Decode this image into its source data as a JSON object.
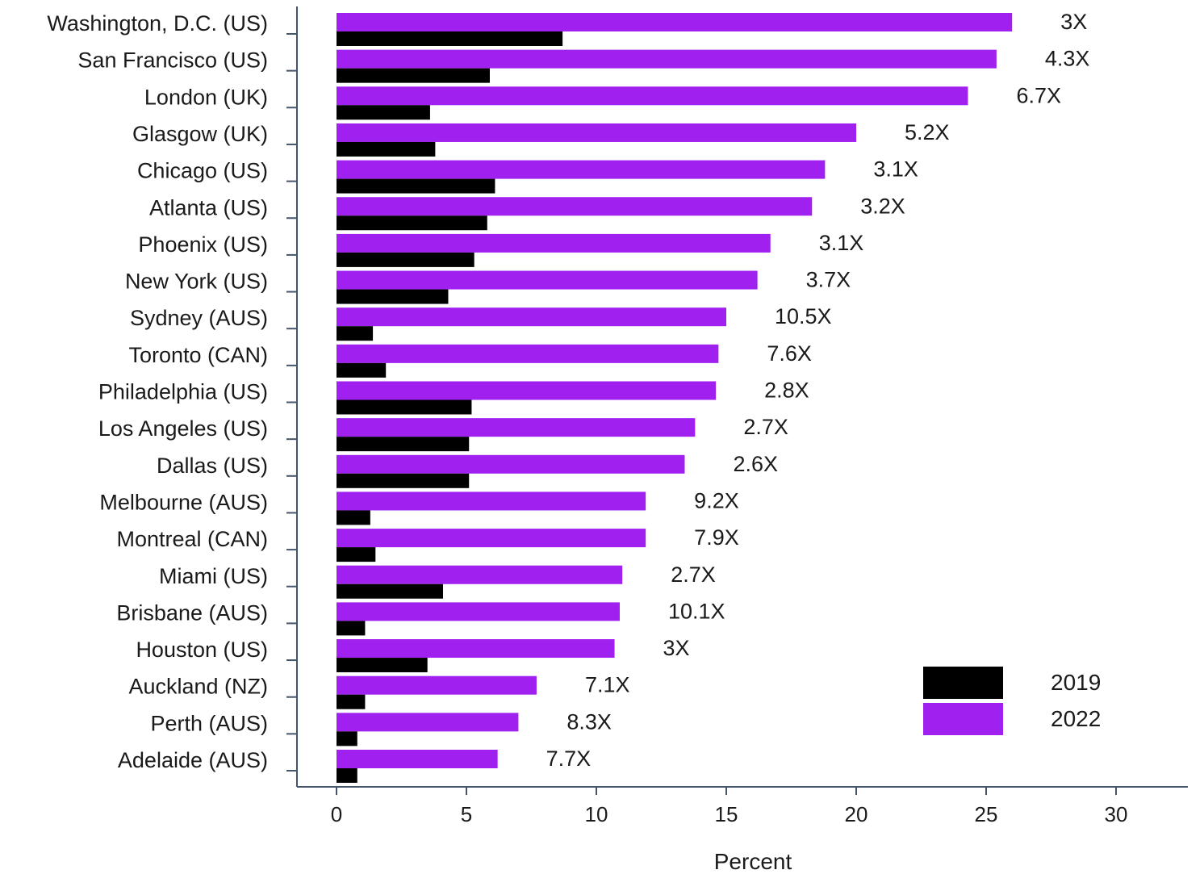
{
  "chart_data": {
    "type": "bar",
    "orientation": "horizontal",
    "xlabel": "Percent",
    "xlim": [
      0,
      30
    ],
    "xticks": [
      "0",
      "5",
      "10",
      "15",
      "20",
      "25",
      "30"
    ],
    "grid": false,
    "legend_position": "bottom-right",
    "categories": [
      "Washington, D.C. (US)",
      "San Francisco (US)",
      "London (UK)",
      "Glasgow (UK)",
      "Chicago (US)",
      "Atlanta (US)",
      "Phoenix (US)",
      "New York (US)",
      "Sydney (AUS)",
      "Toronto (CAN)",
      "Philadelphia (US)",
      "Los Angeles (US)",
      "Dallas (US)",
      "Melbourne (AUS)",
      "Montreal (CAN)",
      "Miami (US)",
      "Brisbane (AUS)",
      "Houston (US)",
      "Auckland (NZ)",
      "Perth (AUS)",
      "Adelaide (AUS)"
    ],
    "series": [
      {
        "name": "2019",
        "color": "#000000",
        "values": [
          8.7,
          5.9,
          3.6,
          3.8,
          6.1,
          5.8,
          5.3,
          4.3,
          1.4,
          1.9,
          5.2,
          5.1,
          5.1,
          1.3,
          1.5,
          4.1,
          1.1,
          3.5,
          1.1,
          0.8,
          0.8
        ]
      },
      {
        "name": "2022",
        "color": "#a020f0",
        "values": [
          26.0,
          25.4,
          24.3,
          20.0,
          18.8,
          18.3,
          16.7,
          16.2,
          15.0,
          14.7,
          14.6,
          13.8,
          13.4,
          11.9,
          11.9,
          11.0,
          10.9,
          10.7,
          7.7,
          7.0,
          6.2
        ]
      }
    ],
    "ratio_labels": [
      "3X",
      "4.3X",
      "6.7X",
      "5.2X",
      "3.1X",
      "3.2X",
      "3.1X",
      "3.7X",
      "10.5X",
      "7.6X",
      "2.8X",
      "2.7X",
      "2.6X",
      "9.2X",
      "7.9X",
      "2.7X",
      "10.1X",
      "3X",
      "7.1X",
      "8.3X",
      "7.7X"
    ]
  }
}
